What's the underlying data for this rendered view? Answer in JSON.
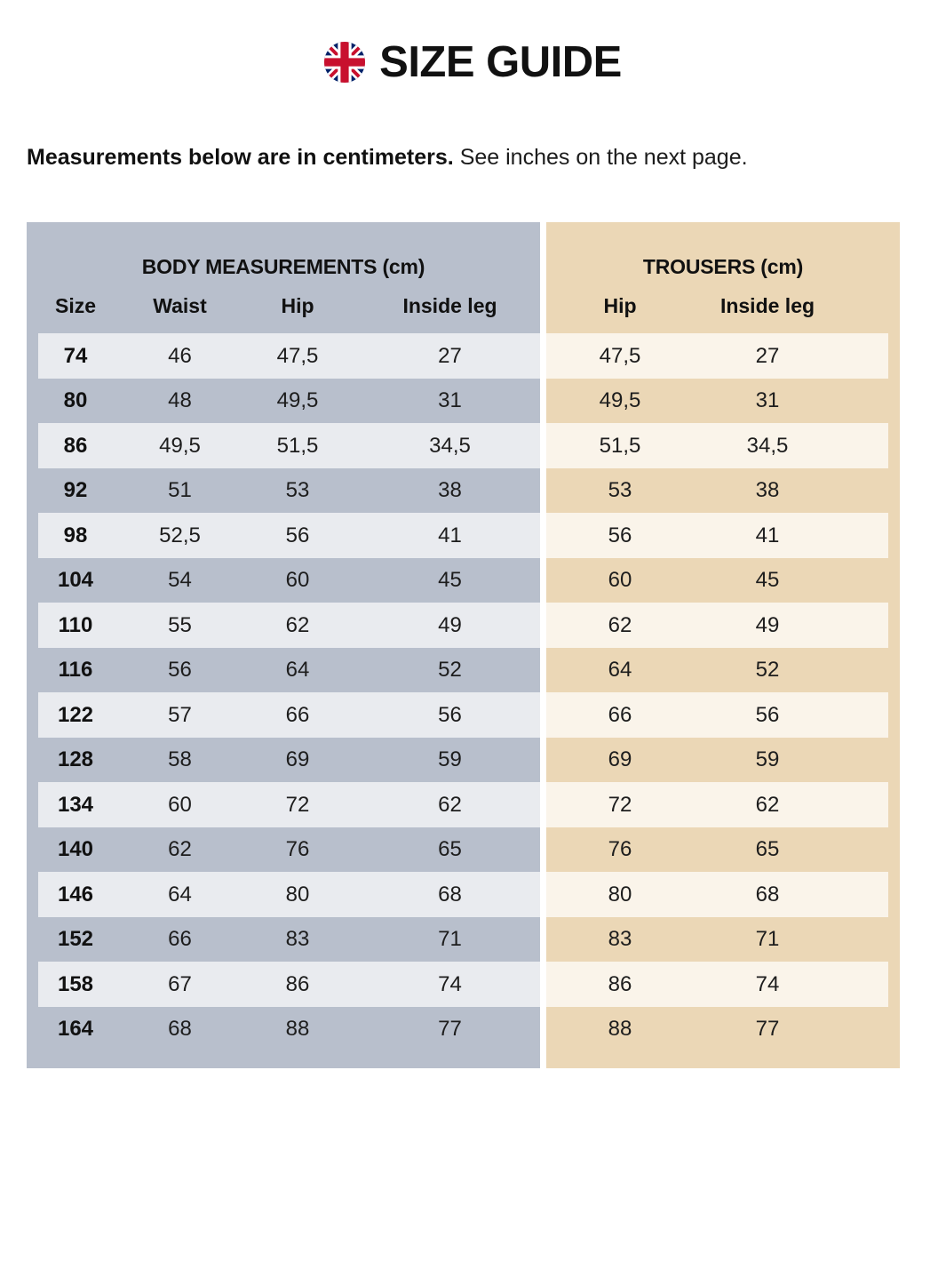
{
  "header": {
    "title": "SIZE GUIDE",
    "flag_icon": "uk-flag-icon"
  },
  "intro": {
    "bold": "Measurements below are in centimeters.",
    "regular": " See inches on the next page."
  },
  "colors": {
    "body_section_bg": "#b8bfcc",
    "body_row_light": "#e9ebef",
    "trousers_section_bg": "#ebd7b6",
    "trousers_row_light": "#faf4ea",
    "text": "#111111",
    "flag_blue": "#012169",
    "flag_red": "#C8102E"
  },
  "table": {
    "body_section": {
      "title": "BODY MEASUREMENTS (cm)",
      "columns": [
        "Size",
        "Waist",
        "Hip",
        "Inside leg"
      ]
    },
    "trousers_section": {
      "title": "TROUSERS (cm)",
      "columns": [
        "Hip",
        "Inside leg"
      ]
    },
    "rows": [
      {
        "size": "74",
        "waist": "46",
        "hip": "47,5",
        "inside_leg": "27",
        "trousers_hip": "47,5",
        "trousers_inside_leg": "27"
      },
      {
        "size": "80",
        "waist": "48",
        "hip": "49,5",
        "inside_leg": "31",
        "trousers_hip": "49,5",
        "trousers_inside_leg": "31"
      },
      {
        "size": "86",
        "waist": "49,5",
        "hip": "51,5",
        "inside_leg": "34,5",
        "trousers_hip": "51,5",
        "trousers_inside_leg": "34,5"
      },
      {
        "size": "92",
        "waist": "51",
        "hip": "53",
        "inside_leg": "38",
        "trousers_hip": "53",
        "trousers_inside_leg": "38"
      },
      {
        "size": "98",
        "waist": "52,5",
        "hip": "56",
        "inside_leg": "41",
        "trousers_hip": "56",
        "trousers_inside_leg": "41"
      },
      {
        "size": "104",
        "waist": "54",
        "hip": "60",
        "inside_leg": "45",
        "trousers_hip": "60",
        "trousers_inside_leg": "45"
      },
      {
        "size": "110",
        "waist": "55",
        "hip": "62",
        "inside_leg": "49",
        "trousers_hip": "62",
        "trousers_inside_leg": "49"
      },
      {
        "size": "116",
        "waist": "56",
        "hip": "64",
        "inside_leg": "52",
        "trousers_hip": "64",
        "trousers_inside_leg": "52"
      },
      {
        "size": "122",
        "waist": "57",
        "hip": "66",
        "inside_leg": "56",
        "trousers_hip": "66",
        "trousers_inside_leg": "56"
      },
      {
        "size": "128",
        "waist": "58",
        "hip": "69",
        "inside_leg": "59",
        "trousers_hip": "69",
        "trousers_inside_leg": "59"
      },
      {
        "size": "134",
        "waist": "60",
        "hip": "72",
        "inside_leg": "62",
        "trousers_hip": "72",
        "trousers_inside_leg": "62"
      },
      {
        "size": "140",
        "waist": "62",
        "hip": "76",
        "inside_leg": "65",
        "trousers_hip": "76",
        "trousers_inside_leg": "65"
      },
      {
        "size": "146",
        "waist": "64",
        "hip": "80",
        "inside_leg": "68",
        "trousers_hip": "80",
        "trousers_inside_leg": "68"
      },
      {
        "size": "152",
        "waist": "66",
        "hip": "83",
        "inside_leg": "71",
        "trousers_hip": "83",
        "trousers_inside_leg": "71"
      },
      {
        "size": "158",
        "waist": "67",
        "hip": "86",
        "inside_leg": "74",
        "trousers_hip": "86",
        "trousers_inside_leg": "74"
      },
      {
        "size": "164",
        "waist": "68",
        "hip": "88",
        "inside_leg": "77",
        "trousers_hip": "88",
        "trousers_inside_leg": "77"
      }
    ]
  }
}
